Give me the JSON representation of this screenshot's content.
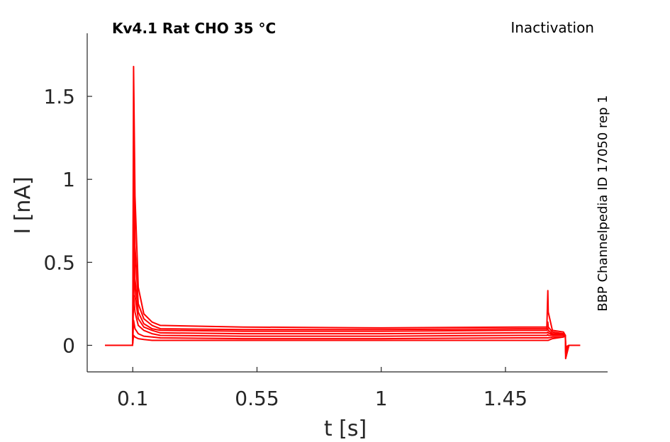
{
  "chart_data": {
    "type": "line",
    "title": "Kv4.1  Rat  CHO  35 °C",
    "subtitle": "Inactivation",
    "side_label": "BBP Channelpedia ID 17050 rep 1",
    "xlabel": "t [s]",
    "ylabel": "I [nA]",
    "xlim": [
      -0.065,
      1.82
    ],
    "ylim": [
      -0.16,
      1.88
    ],
    "xticks": [
      0.1,
      0.55,
      1,
      1.45
    ],
    "xtick_labels": [
      "0.1",
      "0.55",
      "1",
      "1.45"
    ],
    "yticks": [
      0,
      0.5,
      1,
      1.5
    ],
    "ytick_labels": [
      "0",
      "0.5",
      "1",
      "1.5"
    ],
    "grid": false,
    "color": "#ff0000",
    "series": [
      {
        "x": [
          0.0,
          0.099,
          0.1,
          0.103,
          0.108,
          0.12,
          0.14,
          0.17,
          0.2,
          0.5,
          1.0,
          1.5,
          1.6,
          1.6035,
          1.605,
          1.62,
          1.66,
          1.667,
          1.668,
          1.68,
          1.72
        ],
        "values": [
          0.0,
          0.0,
          0.03,
          1.68,
          0.9,
          0.35,
          0.19,
          0.14,
          0.12,
          0.11,
          0.105,
          0.11,
          0.11,
          0.33,
          0.2,
          0.09,
          0.08,
          0.06,
          -0.08,
          0.0,
          0.0
        ]
      },
      {
        "x": [
          0.0,
          0.099,
          0.1,
          0.103,
          0.108,
          0.12,
          0.14,
          0.17,
          0.2,
          0.5,
          1.0,
          1.5,
          1.6,
          1.6035,
          1.605,
          1.62,
          1.66,
          1.667,
          1.668,
          1.68,
          1.72
        ],
        "values": [
          0.0,
          0.0,
          0.03,
          1.2,
          0.6,
          0.25,
          0.16,
          0.12,
          0.1,
          0.095,
          0.095,
          0.1,
          0.1,
          0.14,
          0.11,
          0.08,
          0.07,
          0.06,
          -0.05,
          0.0,
          0.0
        ]
      },
      {
        "x": [
          0.0,
          0.099,
          0.1,
          0.103,
          0.108,
          0.12,
          0.14,
          0.17,
          0.2,
          0.5,
          1.0,
          1.5,
          1.6,
          1.6035,
          1.605,
          1.62,
          1.66,
          1.667,
          1.668,
          1.68,
          1.72
        ],
        "values": [
          0.0,
          0.0,
          0.03,
          0.8,
          0.4,
          0.2,
          0.13,
          0.1,
          0.09,
          0.085,
          0.085,
          0.09,
          0.09,
          0.1,
          0.09,
          0.07,
          0.07,
          0.06,
          -0.04,
          0.0,
          0.0
        ]
      },
      {
        "x": [
          0.0,
          0.099,
          0.1,
          0.103,
          0.108,
          0.12,
          0.14,
          0.17,
          0.2,
          0.5,
          1.0,
          1.5,
          1.6,
          1.6035,
          1.605,
          1.62,
          1.66,
          1.667,
          1.668,
          1.68,
          1.72
        ],
        "values": [
          0.0,
          0.0,
          0.03,
          0.5,
          0.3,
          0.16,
          0.11,
          0.09,
          0.075,
          0.07,
          0.07,
          0.075,
          0.075,
          0.08,
          0.075,
          0.065,
          0.065,
          0.06,
          -0.03,
          0.0,
          0.0
        ]
      },
      {
        "x": [
          0.0,
          0.099,
          0.1,
          0.103,
          0.108,
          0.12,
          0.14,
          0.17,
          0.2,
          0.5,
          1.0,
          1.5,
          1.6,
          1.6035,
          1.605,
          1.62,
          1.66,
          1.667,
          1.668,
          1.68,
          1.72
        ],
        "values": [
          0.0,
          0.0,
          0.02,
          0.3,
          0.2,
          0.12,
          0.09,
          0.07,
          0.06,
          0.055,
          0.055,
          0.06,
          0.06,
          0.065,
          0.06,
          0.06,
          0.06,
          0.06,
          -0.02,
          0.0,
          0.0
        ]
      },
      {
        "x": [
          0.0,
          0.099,
          0.1,
          0.103,
          0.108,
          0.12,
          0.14,
          0.17,
          0.2,
          0.5,
          1.0,
          1.5,
          1.6,
          1.6035,
          1.605,
          1.62,
          1.66,
          1.667,
          1.668,
          1.68,
          1.72
        ],
        "values": [
          0.0,
          0.0,
          0.02,
          0.15,
          0.1,
          0.07,
          0.055,
          0.05,
          0.045,
          0.04,
          0.04,
          0.045,
          0.045,
          0.045,
          0.045,
          0.05,
          0.05,
          0.06,
          -0.01,
          0.0,
          0.0
        ]
      },
      {
        "x": [
          0.0,
          0.099,
          0.1,
          0.103,
          0.108,
          0.12,
          0.14,
          0.17,
          0.2,
          0.5,
          1.0,
          1.5,
          1.6,
          1.6035,
          1.605,
          1.62,
          1.66,
          1.667,
          1.668,
          1.68,
          1.72
        ],
        "values": [
          0.0,
          0.0,
          0.01,
          0.06,
          0.05,
          0.04,
          0.035,
          0.03,
          0.03,
          0.03,
          0.03,
          0.03,
          0.03,
          0.03,
          0.03,
          0.04,
          0.05,
          0.06,
          -0.01,
          0.0,
          0.0
        ]
      }
    ]
  }
}
